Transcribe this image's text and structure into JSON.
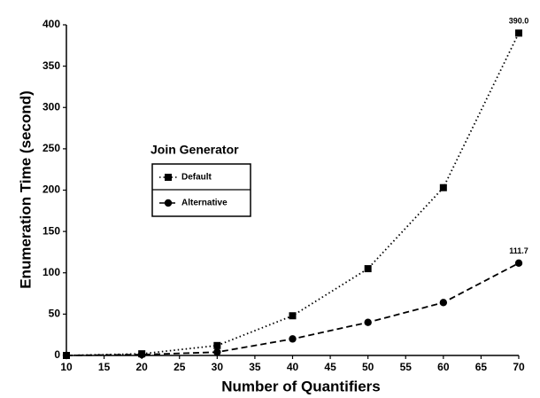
{
  "chart_data": {
    "type": "line",
    "xlabel": "Number of Quantifiers",
    "ylabel": "Enumeration Time (second)",
    "legend_title": "Join Generator",
    "x": [
      10,
      20,
      30,
      40,
      50,
      60,
      70
    ],
    "series": [
      {
        "name": "Default",
        "color": "#000000",
        "marker": "square",
        "linestyle": "dotted",
        "values": [
          0,
          2,
          12,
          48,
          105,
          203,
          390.0
        ],
        "value_labels": [
          null,
          null,
          null,
          null,
          null,
          null,
          "390.0"
        ]
      },
      {
        "name": "Alternative",
        "color": "#000000",
        "marker": "circle",
        "linestyle": "dashed",
        "values": [
          0,
          1,
          4,
          20,
          40,
          64,
          111.7
        ],
        "value_labels": [
          null,
          null,
          null,
          null,
          null,
          null,
          "111.7"
        ]
      }
    ],
    "xlim": [
      10,
      70
    ],
    "xticks": [
      10,
      15,
      20,
      25,
      30,
      35,
      40,
      45,
      50,
      55,
      60,
      65,
      70
    ],
    "ylim": [
      0,
      400
    ],
    "yticks": [
      0,
      50,
      100,
      150,
      200,
      250,
      300,
      350,
      400
    ],
    "grid": false
  }
}
